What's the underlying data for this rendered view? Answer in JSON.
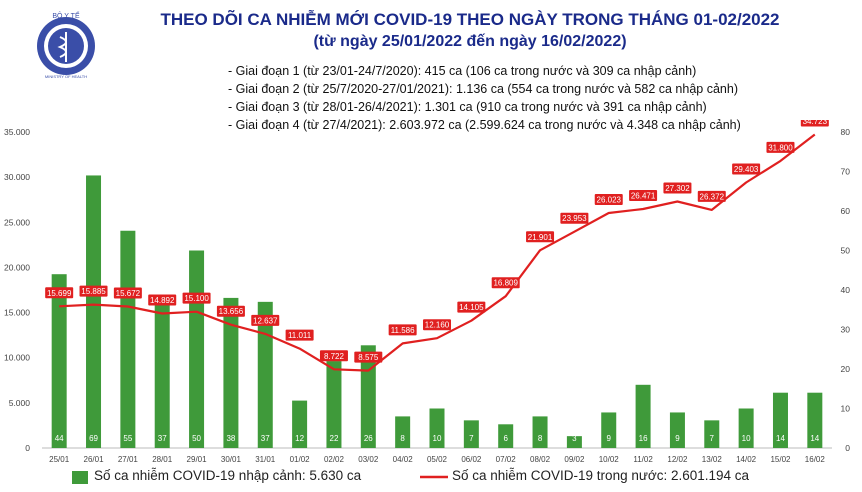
{
  "header": {
    "logo_text": "BỘ Y TẾ",
    "logo_subtext": "MINISTRY OF HEALTH",
    "title": "THEO DÕI CA NHIỄM MỚI COVID-19 THEO NGÀY TRONG THÁNG 01-02/2022",
    "subtitle": "(từ ngày 25/01/2022 đến ngày 16/02/2022)"
  },
  "notes": [
    "- Giai đoạn 1 (từ 23/01-24/7/2020): 415 ca (106 ca trong nước và 309 ca nhập cảnh)",
    "- Giai đoạn 2 (từ 25/7/2020-27/01/2021): 1.136 ca (554 ca trong nước và 582 ca nhập cảnh)",
    "- Giai đoạn 3 (từ 28/01-26/4/2021): 1.301 ca (910 ca trong nước và 391 ca nhập cảnh)",
    "- Giai đoạn 4 (từ 27/4/2021): 2.603.972 ca (2.599.624 ca trong nước và 4.348 ca nhập cảnh)"
  ],
  "legend": {
    "bars": "Số ca nhiễm COVID-19 nhập cảnh: 5.630 ca",
    "line": "Số ca nhiễm COVID-19 trong nước: 2.601.194 ca"
  },
  "colors": {
    "bar": "#3f9a3a",
    "line": "#e02020",
    "title": "#1a2a8a",
    "logo": "#3a4ea8"
  },
  "chart_data": {
    "type": "bar",
    "categories": [
      "25/01",
      "26/01",
      "27/01",
      "28/01",
      "29/01",
      "30/01",
      "31/01",
      "01/02",
      "02/02",
      "03/02",
      "04/02",
      "05/02",
      "06/02",
      "07/02",
      "08/02",
      "09/02",
      "10/02",
      "11/02",
      "12/02",
      "13/02",
      "14/02",
      "15/02",
      "16/02"
    ],
    "series": [
      {
        "type": "line",
        "axis": "left",
        "values": [
          15699,
          15885,
          15672,
          14892,
          15100,
          13656,
          12637,
          11011,
          8722,
          8575,
          11586,
          12160,
          14105,
          16809,
          21901,
          23953,
          26023,
          26471,
          27302,
          26372,
          29403,
          31800,
          34723
        ],
        "labels": [
          "15.699",
          "15.885",
          "15.672",
          "14.892",
          "15.100",
          "13.656",
          "12.637",
          "11.011",
          "8.722",
          "8.575",
          "11.586",
          "12.160",
          "14.105",
          "16.809",
          "21.901",
          "23.953",
          "26.023",
          "26.471",
          "27.302",
          "26.372",
          "29.403",
          "31.800",
          "34.723"
        ]
      },
      {
        "type": "bar",
        "axis": "right",
        "values": [
          44,
          69,
          55,
          37,
          50,
          38,
          37,
          12,
          22,
          26,
          8,
          10,
          7,
          6,
          8,
          3,
          9,
          16,
          9,
          7,
          10,
          14,
          14
        ]
      }
    ],
    "yaxis_left": {
      "min": 0,
      "max": 35000,
      "ticks": [
        "0",
        "5.000",
        "10.000",
        "15.000",
        "20.000",
        "25.000",
        "30.000",
        "35.000"
      ],
      "tick_values": [
        0,
        5000,
        10000,
        15000,
        20000,
        25000,
        30000,
        35000
      ]
    },
    "yaxis_right": {
      "min": 0,
      "max": 80,
      "ticks": [
        "0",
        "10",
        "20",
        "30",
        "40",
        "50",
        "60",
        "70",
        "80"
      ],
      "tick_values": [
        0,
        10,
        20,
        30,
        40,
        50,
        60,
        70,
        80
      ]
    },
    "grid": false
  }
}
